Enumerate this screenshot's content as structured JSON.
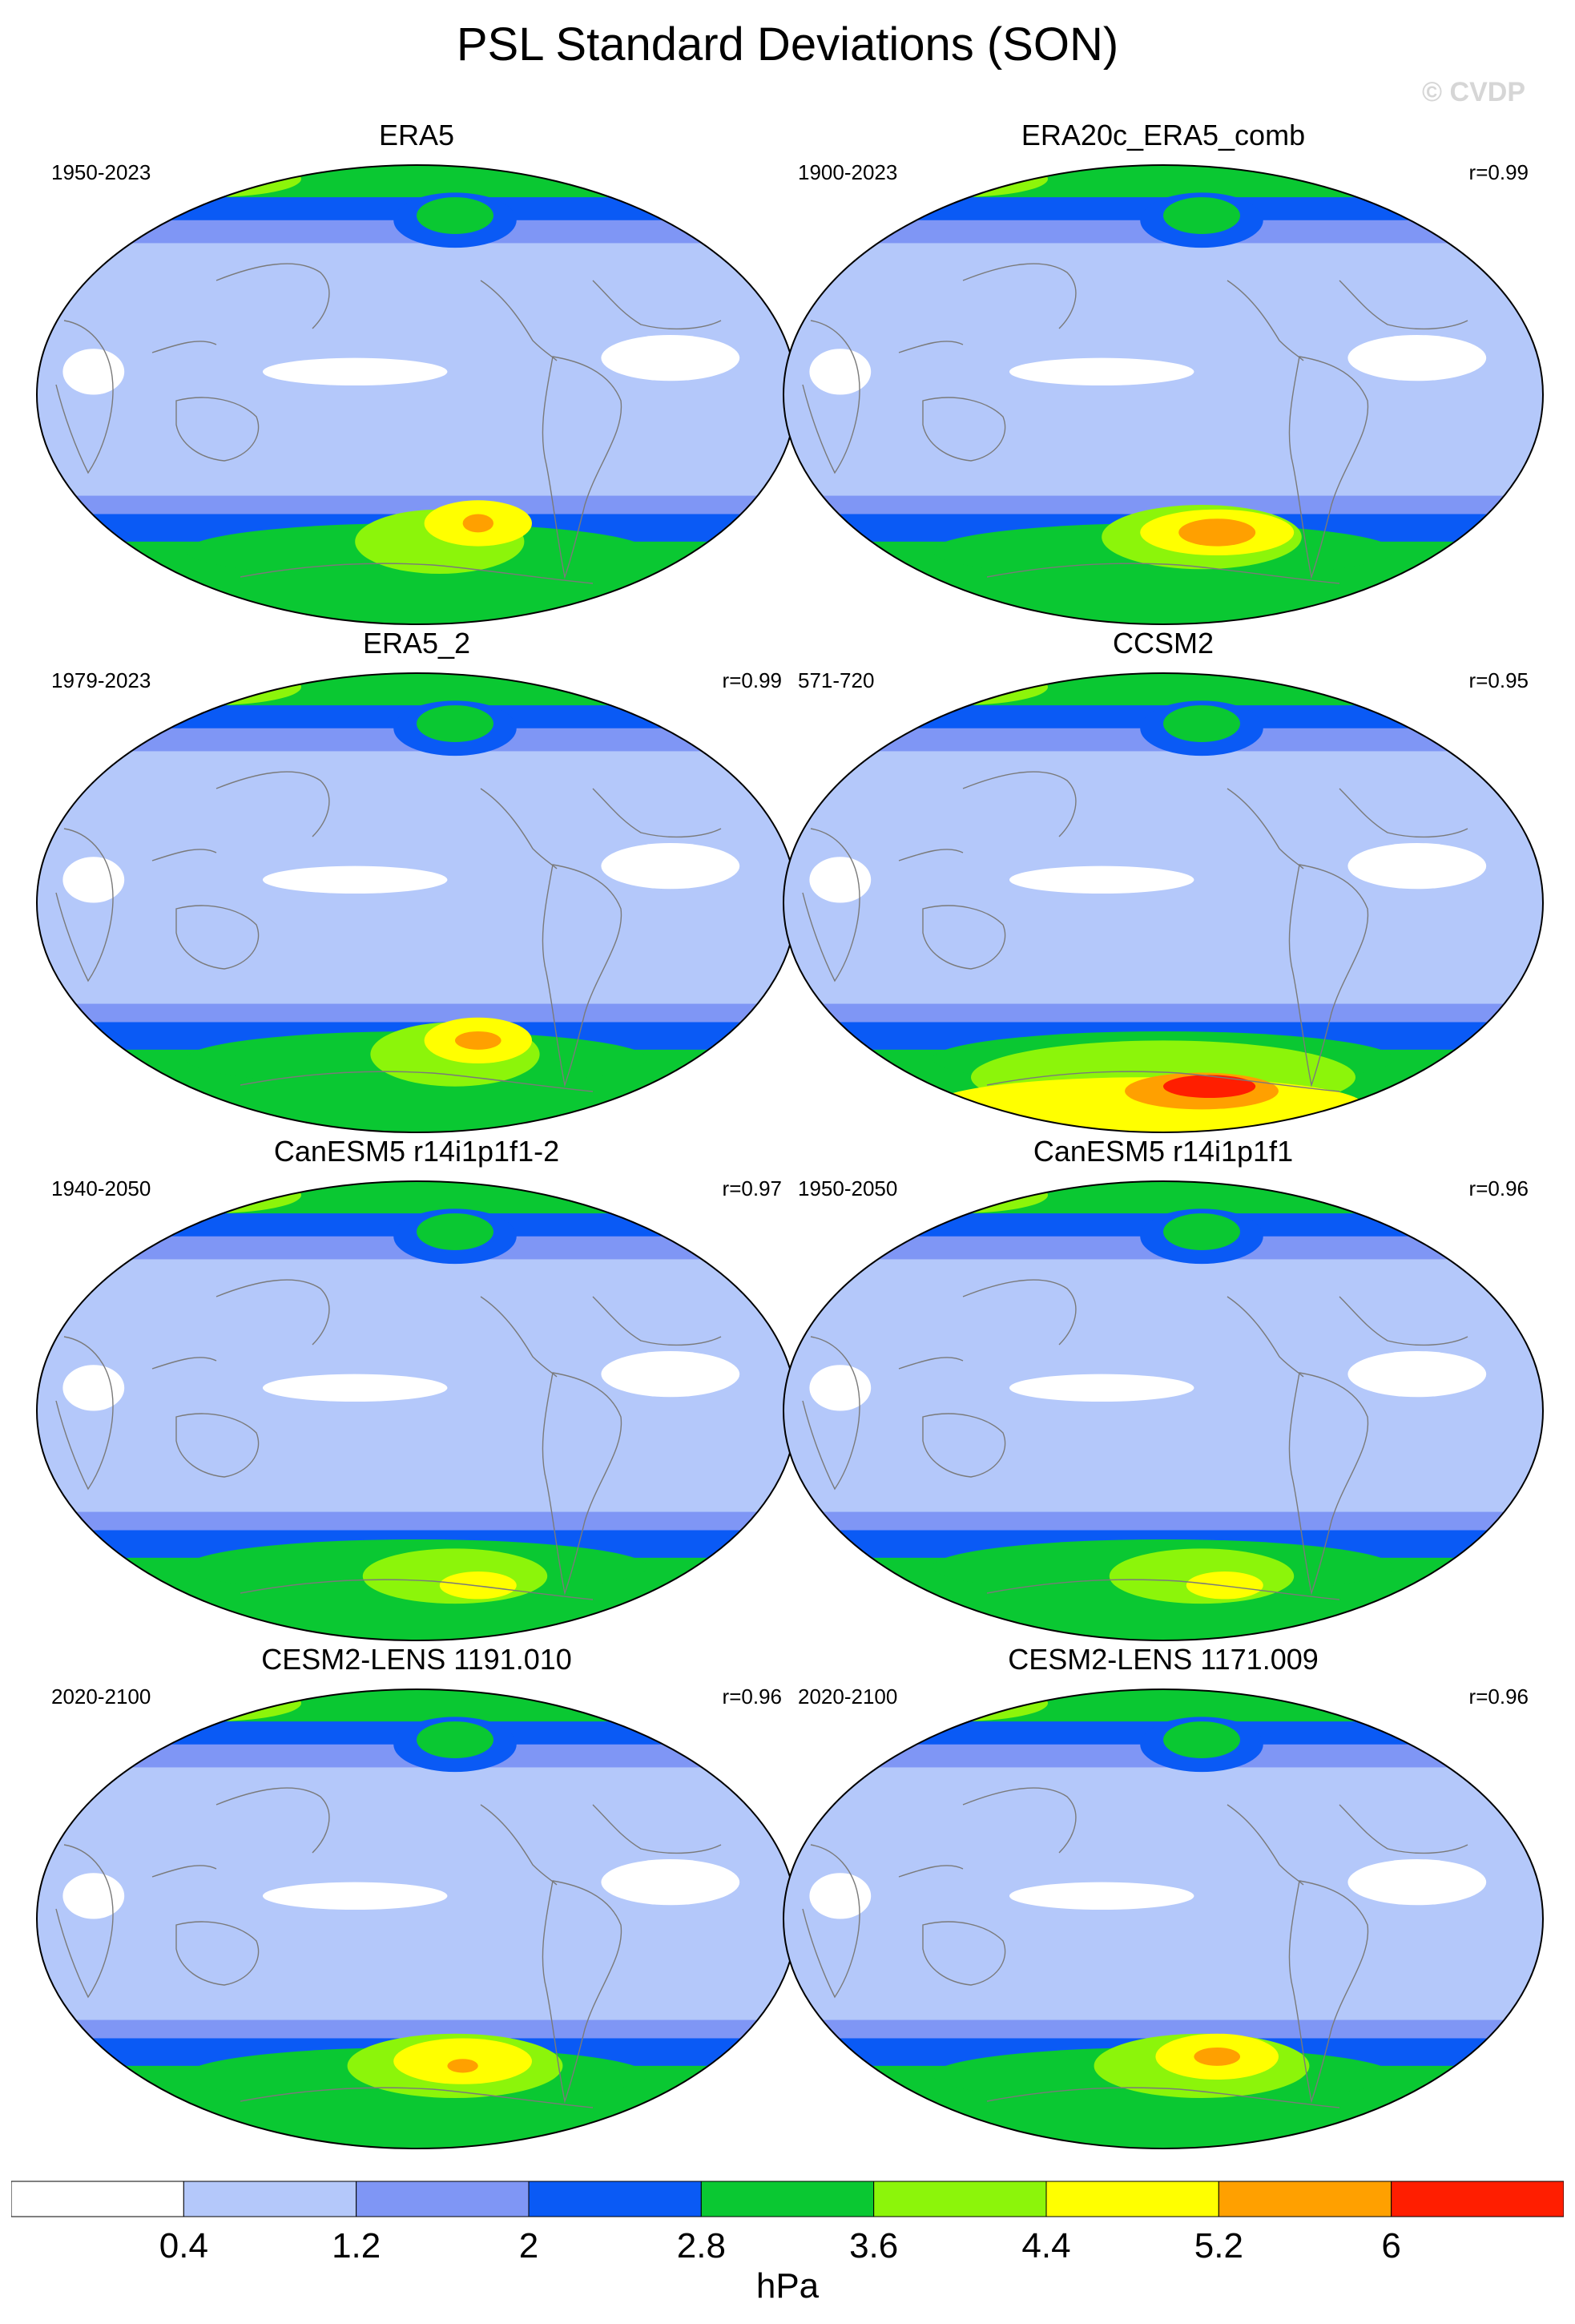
{
  "title": "PSL Standard Deviations (SON)",
  "watermark": "© CVDP",
  "panels": [
    {
      "title": "ERA5",
      "years": "1950-2023",
      "r": ""
    },
    {
      "title": "ERA20c_ERA5_comb",
      "years": "1900-2023",
      "r": "r=0.99"
    },
    {
      "title": "ERA5_2",
      "years": "1979-2023",
      "r": "r=0.99"
    },
    {
      "title": "CCSM2",
      "years": "571-720",
      "r": "r=0.95"
    },
    {
      "title": "CanESM5 r14i1p1f1-2",
      "years": "1940-2050",
      "r": "r=0.97"
    },
    {
      "title": "CanESM5 r14i1p1f1",
      "years": "1950-2050",
      "r": "r=0.96"
    },
    {
      "title": "CESM2-LENS 1191.010",
      "years": "2020-2100",
      "r": "r=0.96"
    },
    {
      "title": "CESM2-LENS 1171.009",
      "years": "2020-2100",
      "r": "r=0.96"
    }
  ],
  "colorbar": {
    "units": "hPa",
    "ticks": [
      "0.4",
      "1.2",
      "2",
      "2.8",
      "3.6",
      "4.4",
      "5.2",
      "6"
    ],
    "colors": [
      "#ffffff",
      "#b4c8fa",
      "#7f96f5",
      "#0a5af5",
      "#0ac832",
      "#8cf50a",
      "#ffff00",
      "#ffa000",
      "#ff1e00"
    ]
  }
}
